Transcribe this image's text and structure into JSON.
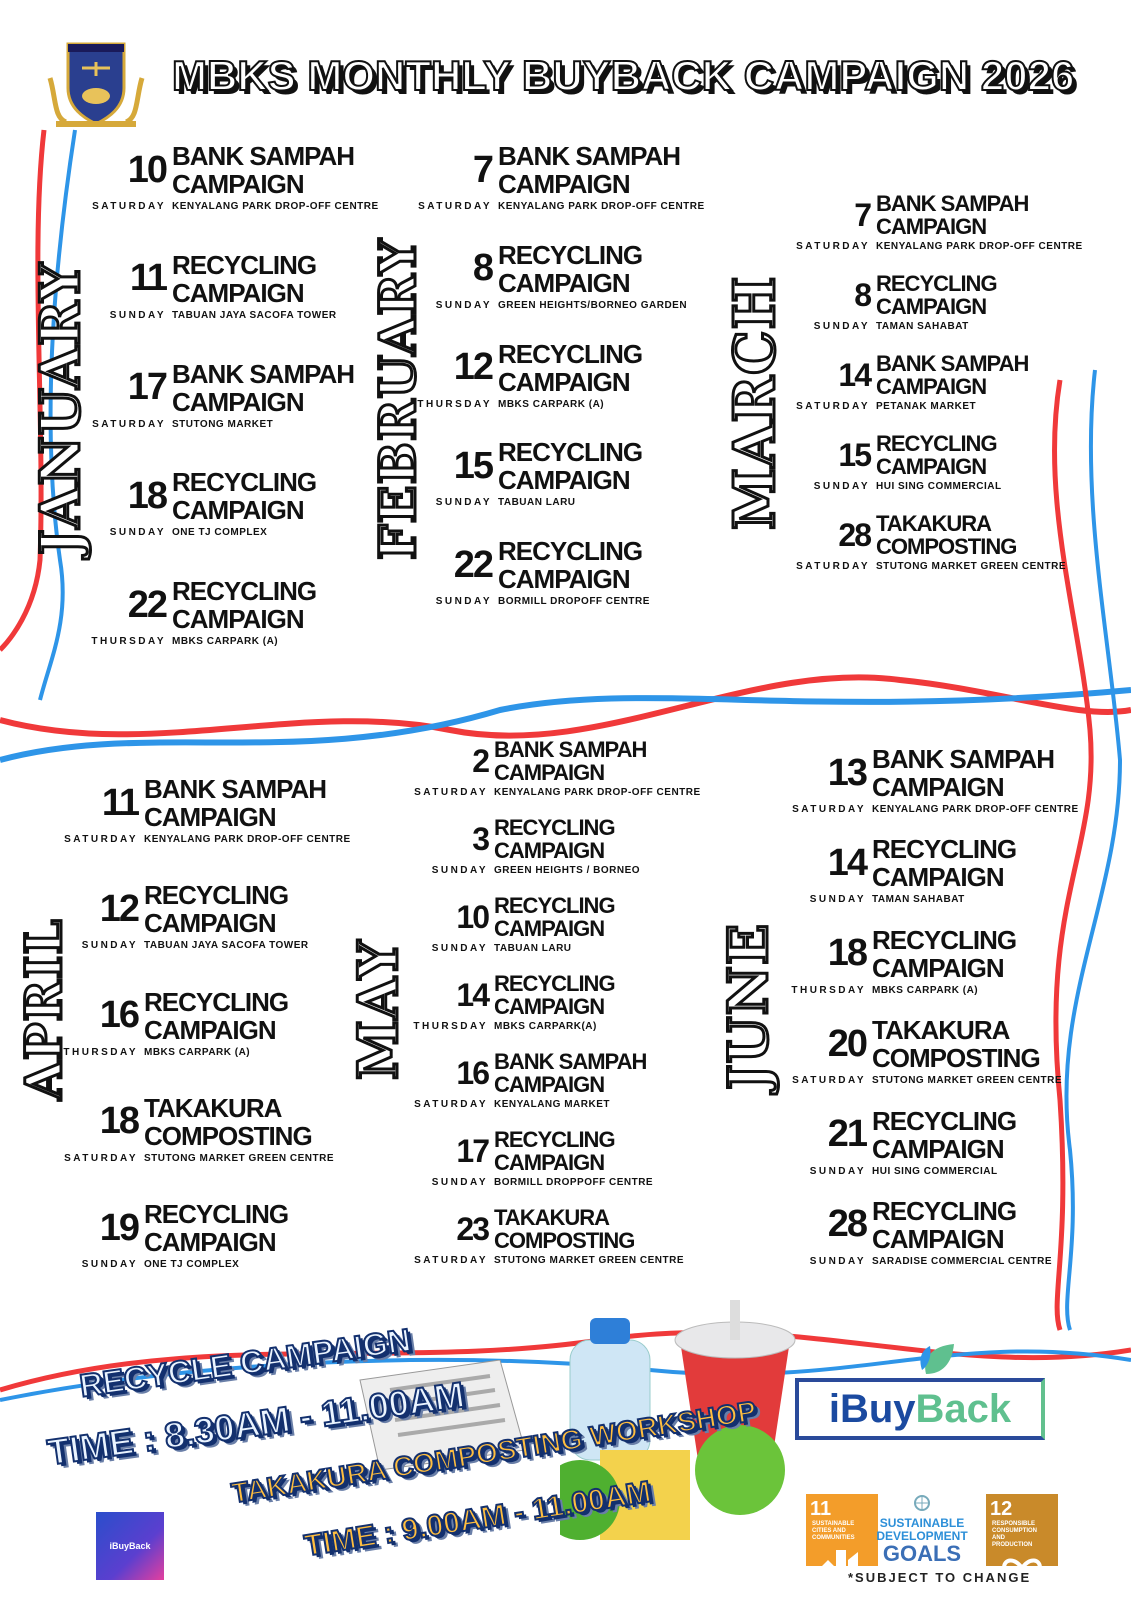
{
  "header": {
    "title": "MBKS MONTHLY BUYBACK CAMPAIGN 2026",
    "crest": "Majlis Bandaraya Kuching Selatan crest"
  },
  "colors": {
    "ribbon_red": "#f0393a",
    "ribbon_blue": "#2e95e8",
    "title_fill": "#ffffff",
    "promo_blue": "#13306e",
    "promo_orange": "#ffbe3f"
  },
  "months": [
    {
      "name": "JANUARY",
      "events": [
        {
          "day": "10",
          "title1": "BANK SAMPAH",
          "title2": "CAMPAIGN",
          "weekday": "SATURDAY",
          "location": "KENYALANG PARK DROP-OFF CENTRE"
        },
        {
          "day": "11",
          "title1": "RECYCLING",
          "title2": "CAMPAIGN",
          "weekday": "SUNDAY",
          "location": "TABUAN JAYA SACOFA TOWER"
        },
        {
          "day": "17",
          "title1": "BANK SAMPAH",
          "title2": "CAMPAIGN",
          "weekday": "SATURDAY",
          "location": "STUTONG MARKET"
        },
        {
          "day": "18",
          "title1": "RECYCLING",
          "title2": "CAMPAIGN",
          "weekday": "SUNDAY",
          "location": "ONE TJ COMPLEX"
        },
        {
          "day": "22",
          "title1": "RECYCLING",
          "title2": "CAMPAIGN",
          "weekday": "THURSDAY",
          "location": "MBKS CARPARK (A)"
        }
      ]
    },
    {
      "name": "FEBRUARY",
      "events": [
        {
          "day": "7",
          "title1": "BANK SAMPAH",
          "title2": "CAMPAIGN",
          "weekday": "SATURDAY",
          "location": "KENYALANG PARK DROP-OFF CENTRE"
        },
        {
          "day": "8",
          "title1": "RECYCLING",
          "title2": "CAMPAIGN",
          "weekday": "SUNDAY",
          "location": "GREEN HEIGHTS/BORNEO GARDEN"
        },
        {
          "day": "12",
          "title1": "RECYCLING",
          "title2": "CAMPAIGN",
          "weekday": "THURSDAY",
          "location": "MBKS CARPARK (A)"
        },
        {
          "day": "15",
          "title1": "RECYCLING",
          "title2": "CAMPAIGN",
          "weekday": "SUNDAY",
          "location": "TABUAN LARU"
        },
        {
          "day": "22",
          "title1": "RECYCLING",
          "title2": "CAMPAIGN",
          "weekday": "SUNDAY",
          "location": "BORMILL DROPOFF CENTRE"
        }
      ]
    },
    {
      "name": "MARCH",
      "events": [
        {
          "day": "7",
          "title1": "BANK SAMPAH",
          "title2": "CAMPAIGN",
          "weekday": "SATURDAY",
          "location": "KENYALANG PARK DROP-OFF CENTRE"
        },
        {
          "day": "8",
          "title1": "RECYCLING",
          "title2": "CAMPAIGN",
          "weekday": "SUNDAY",
          "location": "TAMAN SAHABAT"
        },
        {
          "day": "14",
          "title1": "BANK SAMPAH",
          "title2": "CAMPAIGN",
          "weekday": "SATURDAY",
          "location": "PETANAK MARKET"
        },
        {
          "day": "15",
          "title1": "RECYCLING",
          "title2": "CAMPAIGN",
          "weekday": "SUNDAY",
          "location": "HUI SING COMMERCIAL"
        },
        {
          "day": "28",
          "title1": "TAKAKURA",
          "title2": "COMPOSTING",
          "weekday": "SATURDAY",
          "location": "STUTONG MARKET GREEN CENTRE"
        }
      ]
    },
    {
      "name": "APRIL",
      "events": [
        {
          "day": "11",
          "title1": "BANK SAMPAH",
          "title2": "CAMPAIGN",
          "weekday": "SATURDAY",
          "location": "KENYALANG PARK DROP-OFF CENTRE"
        },
        {
          "day": "12",
          "title1": "RECYCLING",
          "title2": "CAMPAIGN",
          "weekday": "SUNDAY",
          "location": "TABUAN JAYA SACOFA TOWER"
        },
        {
          "day": "16",
          "title1": "RECYCLING",
          "title2": "CAMPAIGN",
          "weekday": "THURSDAY",
          "location": "MBKS CARPARK (A)"
        },
        {
          "day": "18",
          "title1": "TAKAKURA",
          "title2": "COMPOSTING",
          "weekday": "SATURDAY",
          "location": "STUTONG MARKET GREEN CENTRE"
        },
        {
          "day": "19",
          "title1": "RECYCLING",
          "title2": "CAMPAIGN",
          "weekday": "SUNDAY",
          "location": "ONE TJ COMPLEX"
        }
      ]
    },
    {
      "name": "MAY",
      "events": [
        {
          "day": "2",
          "title1": "BANK SAMPAH",
          "title2": "CAMPAIGN",
          "weekday": "SATURDAY",
          "location": "KENYALANG PARK DROP-OFF CENTRE"
        },
        {
          "day": "3",
          "title1": "RECYCLING",
          "title2": "CAMPAIGN",
          "weekday": "SUNDAY",
          "location": "GREEN HEIGHTS / BORNEO"
        },
        {
          "day": "10",
          "title1": "RECYCLING",
          "title2": "CAMPAIGN",
          "weekday": "SUNDAY",
          "location": "TABUAN LARU"
        },
        {
          "day": "14",
          "title1": "RECYCLING",
          "title2": "CAMPAIGN",
          "weekday": "THURSDAY",
          "location": "MBKS CARPARK(A)"
        },
        {
          "day": "16",
          "title1": "BANK SAMPAH",
          "title2": "CAMPAIGN",
          "weekday": "SATURDAY",
          "location": "KENYALANG MARKET"
        },
        {
          "day": "17",
          "title1": "RECYCLING",
          "title2": "CAMPAIGN",
          "weekday": "SUNDAY",
          "location": "BORMILL DROPPOFF CENTRE"
        },
        {
          "day": "23",
          "title1": "TAKAKURA",
          "title2": "COMPOSTING",
          "weekday": "SATURDAY",
          "location": "STUTONG MARKET GREEN CENTRE"
        }
      ]
    },
    {
      "name": "JUNE",
      "events": [
        {
          "day": "13",
          "title1": "BANK SAMPAH",
          "title2": "CAMPAIGN",
          "weekday": "SATURDAY",
          "location": "KENYALANG PARK DROP-OFF CENTRE"
        },
        {
          "day": "14",
          "title1": "RECYCLING",
          "title2": "CAMPAIGN",
          "weekday": "SUNDAY",
          "location": "TAMAN SAHABAT"
        },
        {
          "day": "18",
          "title1": "RECYCLING",
          "title2": "CAMPAIGN",
          "weekday": "THURSDAY",
          "location": "MBKS CARPARK (A)"
        },
        {
          "day": "20",
          "title1": "TAKAKURA",
          "title2": "COMPOSTING",
          "weekday": "SATURDAY",
          "location": "STUTONG MARKET GREEN CENTRE"
        },
        {
          "day": "21",
          "title1": "RECYCLING",
          "title2": "CAMPAIGN",
          "weekday": "SUNDAY",
          "location": "HUI SING COMMERCIAL"
        },
        {
          "day": "28",
          "title1": "RECYCLING",
          "title2": "CAMPAIGN",
          "weekday": "SUNDAY",
          "location": "SARADISE COMMERCIAL CENTRE"
        }
      ]
    }
  ],
  "promo": {
    "recycle_title": "RECYCLE CAMPAIGN",
    "recycle_time": "TIME : 8.30AM - 11.00AM",
    "takakura_title": "TAKAKURA COMPOSTING WORKSHOP",
    "takakura_time": "TIME : 9.00AM - 11.00AM"
  },
  "footer": {
    "ibuyback_part1": "iBuy",
    "ibuyback_part2": "Back",
    "small_logo": "iBuyBack",
    "sdg11_num": "11",
    "sdg11_text": "SUSTAINABLE CITIES AND COMMUNITIES",
    "sdg_title1": "SUSTAINABLE",
    "sdg_title2": "DEVELOPMENT",
    "sdg_title3": "GOALS",
    "sdg12_num": "12",
    "sdg12_text": "RESPONSIBLE CONSUMPTION AND PRODUCTION",
    "note": "*SUBJECT TO CHANGE"
  }
}
